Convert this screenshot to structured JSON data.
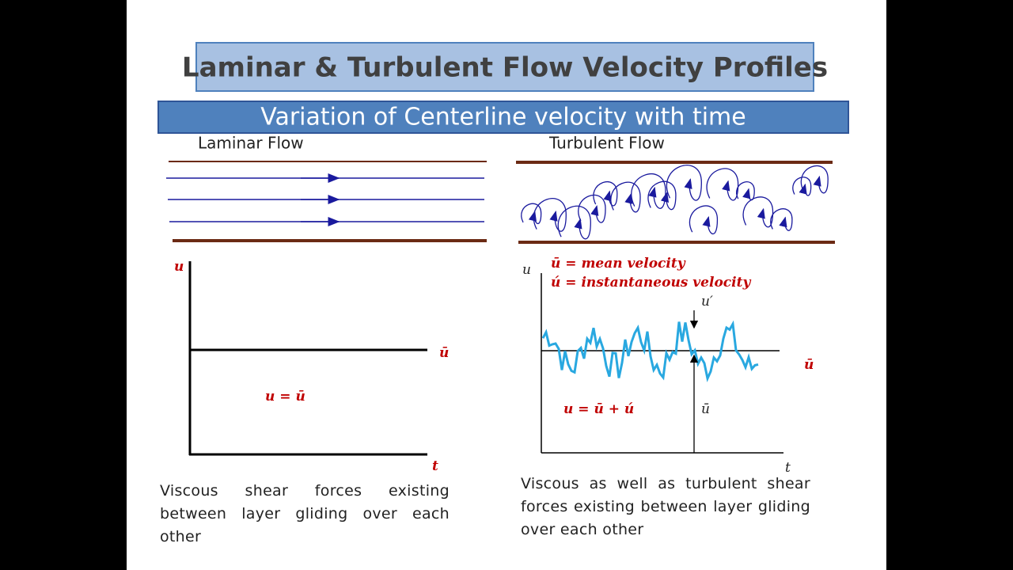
{
  "header": {
    "title": "Laminar & Turbulent Flow Velocity Profiles",
    "subtitle": "Variation of Centerline velocity with time"
  },
  "laminar": {
    "label": "Laminar Flow",
    "graph": {
      "y_label": "u",
      "x_label": "t",
      "mean_label": "ū",
      "equation": "u = ū"
    },
    "caption": "Viscous shear forces existing between layer gliding over each other"
  },
  "turbulent": {
    "label": "Turbulent Flow",
    "legend": [
      "ū = mean velocity",
      "ú = instantaneous velocity"
    ],
    "graph": {
      "y_label": "u",
      "x_label": "t",
      "fluct_label": "u′",
      "inner_mean_label": "ū",
      "mean_label": "ū",
      "equation": "u = ū + ú"
    },
    "caption": "Viscous as well as turbulent shear forces existing between layer gliding over each other"
  }
}
